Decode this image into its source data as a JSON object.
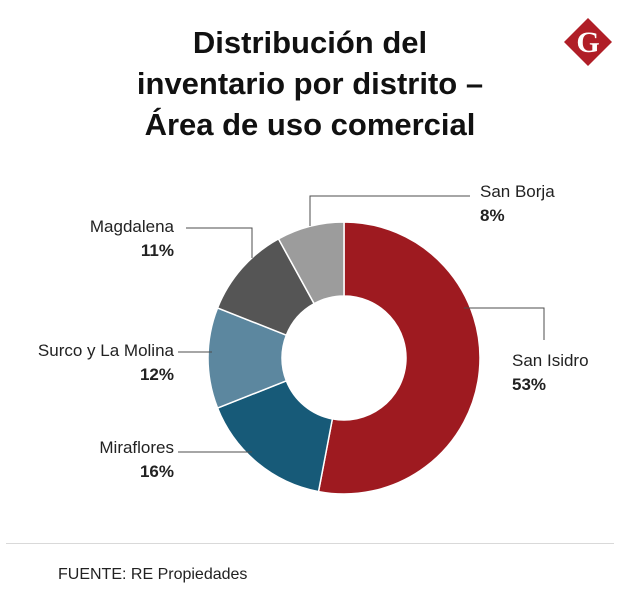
{
  "header": {
    "title_lines": [
      "Distribución del",
      "inventario por distrito –",
      "Área de uso comercial"
    ],
    "logo_letter": "G",
    "logo_icon": "gestion-logo-icon"
  },
  "colors": {
    "San Isidro": "#9e1a20",
    "Miraflores": "#175a78",
    "Surco y La Molina": "#5c879f",
    "Magdalena": "#555555",
    "San Borja": "#9c9c9c",
    "leader_line": "#4d4d4d",
    "logo": "#b01e27"
  },
  "chart_data": {
    "type": "pie",
    "donut": true,
    "title": "Distribución del inventario por distrito – Área de uso comercial",
    "categories": [
      "San Isidro",
      "Miraflores",
      "Surco y La Molina",
      "Magdalena",
      "San Borja"
    ],
    "values": [
      53,
      16,
      12,
      11,
      8
    ],
    "value_labels": [
      "53%",
      "16%",
      "12%",
      "11%",
      "8%"
    ],
    "unit": "%",
    "start": "top, clockwise"
  },
  "footer": {
    "source": "FUENTE: RE Propiedades"
  }
}
